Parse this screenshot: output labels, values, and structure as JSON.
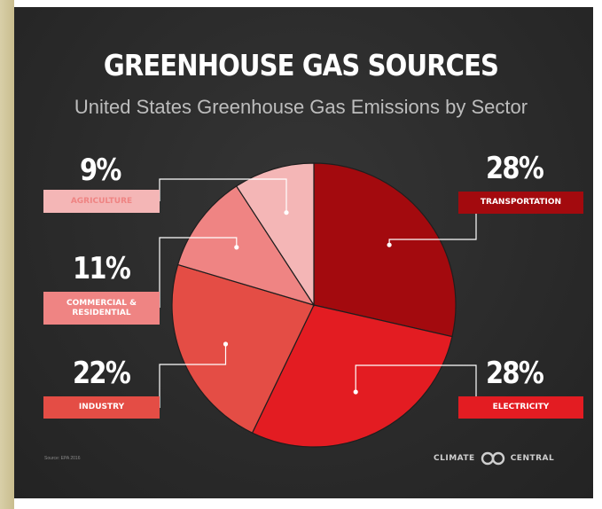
{
  "header": {
    "title": "GREENHOUSE GAS SOURCES",
    "subtitle": "United States Greenhouse Gas Emissions by Sector"
  },
  "footer": {
    "source": "Source: EPA 2016",
    "brand_left": "CLIMATE",
    "brand_right": "CENTRAL"
  },
  "colors": {
    "background": "#2b2b2b",
    "transportation": "#a30a0e",
    "electricity": "#e31c22",
    "industry": "#e44d45",
    "commercial_residential": "#ef8483",
    "agriculture": "#f4b6b6"
  },
  "chart_data": {
    "type": "pie",
    "title": "GREENHOUSE GAS SOURCES",
    "subtitle": "United States Greenhouse Gas Emissions by Sector",
    "categories": [
      "TRANSPORTATION",
      "ELECTRICITY",
      "INDUSTRY",
      "COMMERCIAL & RESIDENTIAL",
      "AGRICULTURE"
    ],
    "values": [
      28,
      28,
      22,
      11,
      9
    ],
    "labels": [
      "28%",
      "28%",
      "22%",
      "11%",
      "9%"
    ],
    "unit": "%"
  }
}
